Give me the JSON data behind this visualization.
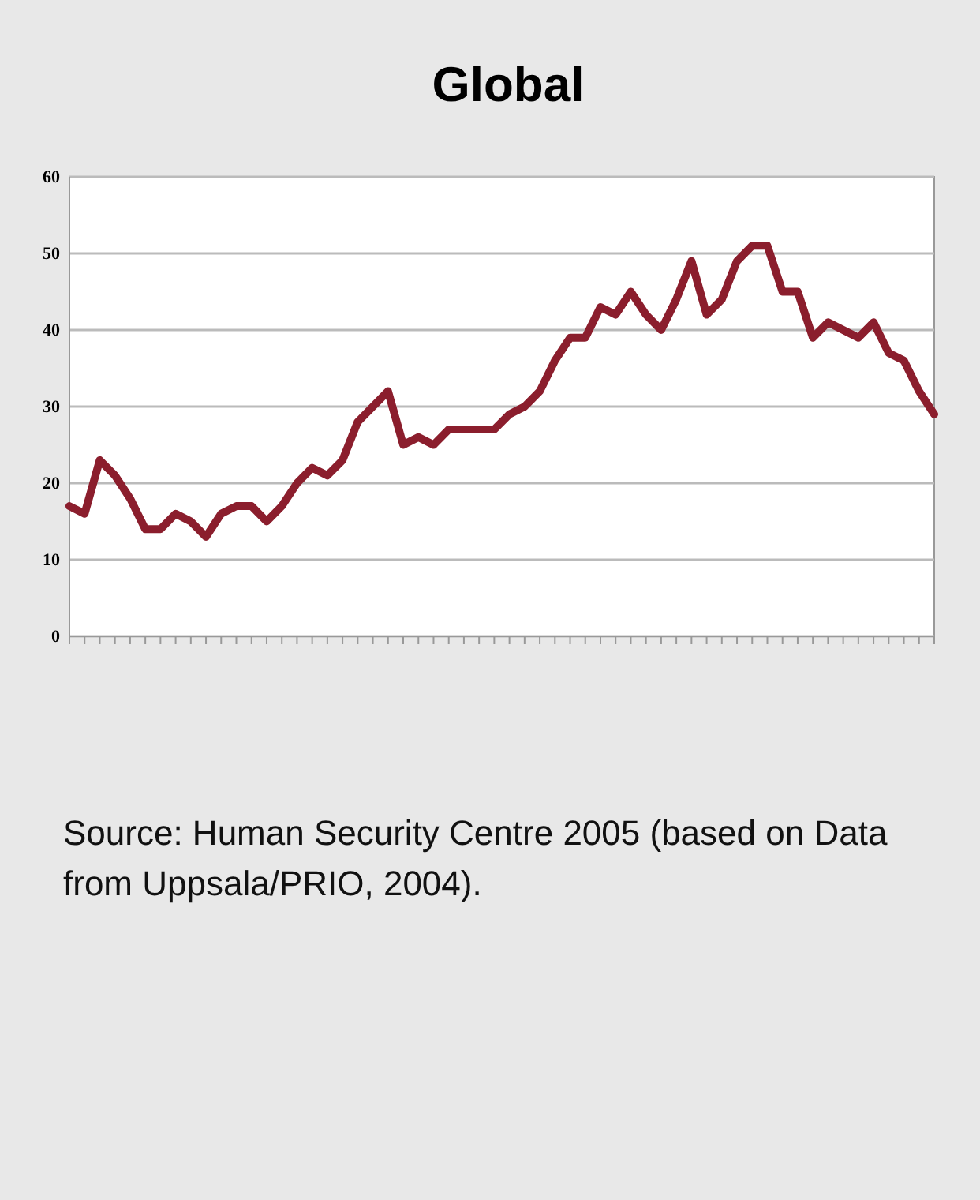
{
  "chart_data": {
    "type": "line",
    "title": "Global",
    "categories": [
      null,
      null,
      null,
      null,
      null,
      null,
      null,
      null,
      null,
      null,
      null,
      null,
      null,
      null,
      null,
      null,
      null,
      null,
      null,
      null,
      null,
      null,
      null,
      null,
      null,
      null,
      null,
      null,
      null,
      null,
      null,
      null,
      null,
      null,
      null,
      null,
      null,
      null,
      null,
      null,
      null,
      null,
      null,
      null,
      null,
      null,
      null,
      null,
      null,
      null,
      null,
      null,
      null,
      null,
      null,
      null,
      null,
      null
    ],
    "series": [
      {
        "color": "#8b1e2d",
        "values": [
          17,
          16,
          23,
          21,
          18,
          14,
          14,
          16,
          15,
          13,
          16,
          17,
          17,
          15,
          17,
          20,
          22,
          21,
          23,
          28,
          30,
          32,
          25,
          26,
          25,
          27,
          27,
          27,
          27,
          29,
          30,
          32,
          36,
          39,
          39,
          43,
          42,
          45,
          42,
          40,
          44,
          49,
          42,
          44,
          49,
          51,
          51,
          45,
          45,
          39,
          41,
          40,
          39,
          41,
          37,
          36,
          32,
          29
        ]
      }
    ],
    "ylim": [
      0,
      60
    ],
    "yticks": [
      0,
      10,
      20,
      30,
      40,
      50,
      60
    ],
    "grid": "y",
    "marker": "none",
    "line_style": "solid",
    "annotations": [
      "Source: Human Security Centre 2005 (based on Data from Uppsala/PRIO, 2004)."
    ]
  }
}
